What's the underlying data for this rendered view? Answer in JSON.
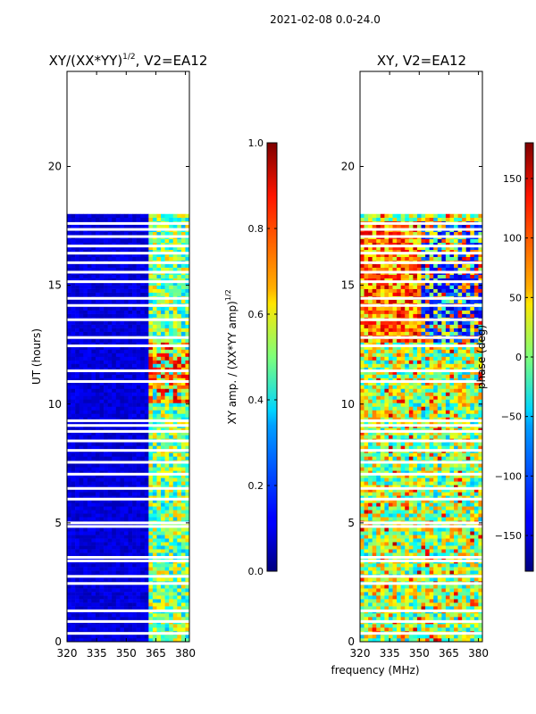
{
  "figure_title": "2021-02-08 0.0-24.0",
  "x_axis_label": "frequency (MHz)",
  "chart_data": [
    {
      "type": "heatmap",
      "title": "XY/(XX*YY)",
      "title_exponent": "1/2",
      "title_suffix": ", V2=EA12",
      "ylabel": "UT (hours)",
      "xlim": [
        320,
        382
      ],
      "ylim": [
        0,
        24
      ],
      "x_ticks": [
        "320",
        "335",
        "350",
        "365",
        "380"
      ],
      "y_ticks": [
        "0",
        "5",
        "10",
        "15",
        "20"
      ],
      "data_extent_hours": [
        0,
        18
      ],
      "colorbar": {
        "label": "XY amp. / (XX*YY amp)",
        "label_exponent": "1/2",
        "range": [
          0.0,
          1.0
        ],
        "ticks": [
          "0.0",
          "0.2",
          "0.4",
          "0.6",
          "0.8",
          "1.0"
        ],
        "colormap": "jet"
      }
    },
    {
      "type": "heatmap",
      "title": "XY, V2=EA12",
      "xlim": [
        320,
        382
      ],
      "ylim": [
        0,
        24
      ],
      "x_ticks": [
        "320",
        "335",
        "350",
        "365",
        "380"
      ],
      "y_ticks": [
        "0",
        "5",
        "10",
        "15",
        "20"
      ],
      "data_extent_hours": [
        0,
        18
      ],
      "colorbar": {
        "label": "phase (deg)",
        "range": [
          -180,
          180
        ],
        "ticks": [
          "−150",
          "−100",
          "−50",
          "0",
          "50",
          "100",
          "150"
        ],
        "colormap": "jet"
      }
    }
  ],
  "gap_hours": [
    0.35,
    0.85,
    1.3,
    2.45,
    2.75,
    3.4,
    3.55,
    4.85,
    5.0,
    6.0,
    6.45,
    7.05,
    7.55,
    8.05,
    8.45,
    8.85,
    9.1,
    9.3,
    10.95,
    11.4,
    12.45,
    12.8,
    13.55,
    14.15,
    14.45,
    15.15,
    15.55,
    15.95,
    16.35,
    16.65,
    17.05,
    17.35,
    17.6
  ]
}
